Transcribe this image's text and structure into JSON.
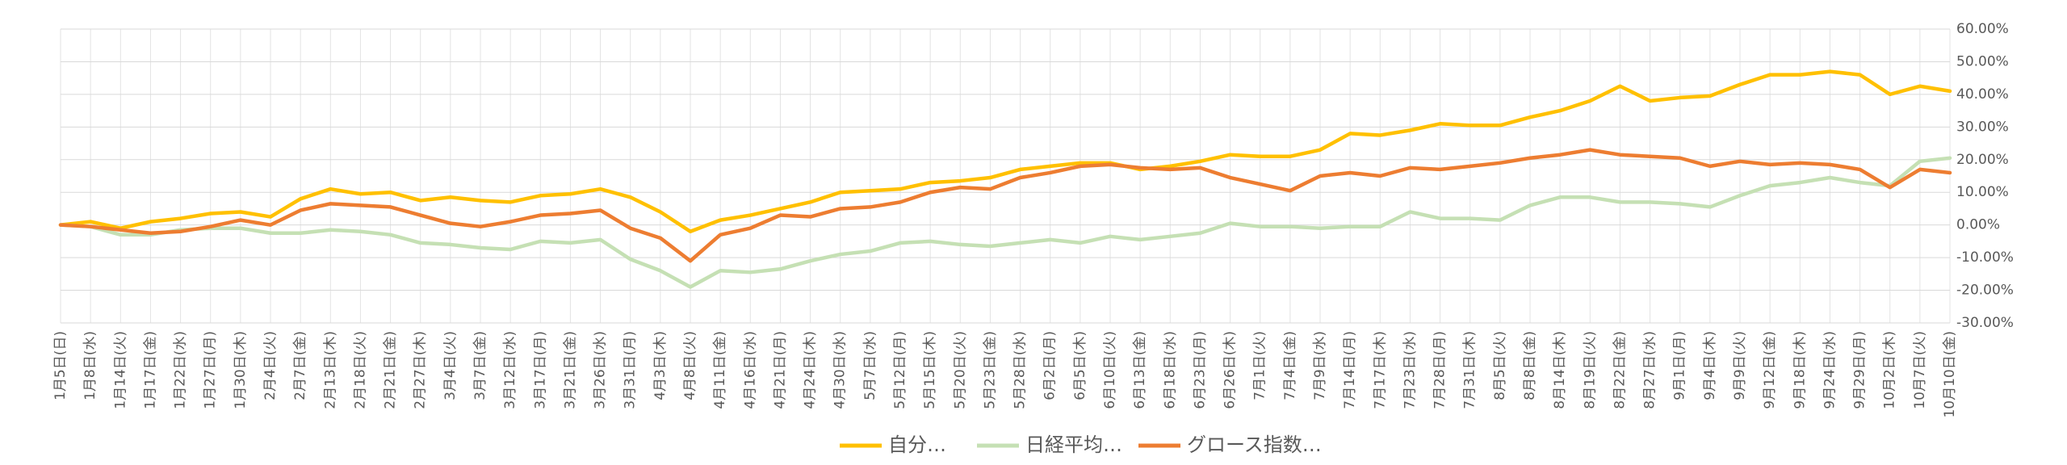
{
  "chart_data": {
    "type": "line",
    "categories": [
      "1月5日(日)",
      "1月8日(水)",
      "1月14日(火)",
      "1月17日(金)",
      "1月22日(水)",
      "1月27日(月)",
      "1月30日(木)",
      "2月4日(火)",
      "2月7日(金)",
      "2月13日(木)",
      "2月18日(火)",
      "2月21日(金)",
      "2月27日(木)",
      "3月4日(火)",
      "3月7日(金)",
      "3月12日(水)",
      "3月17日(月)",
      "3月21日(金)",
      "3月26日(水)",
      "3月31日(月)",
      "4月3日(木)",
      "4月8日(火)",
      "4月11日(金)",
      "4月16日(水)",
      "4月21日(月)",
      "4月24日(木)",
      "4月30日(水)",
      "5月7日(水)",
      "5月12日(月)",
      "5月15日(木)",
      "5月20日(火)",
      "5月23日(金)",
      "5月28日(水)",
      "6月2日(月)",
      "6月5日(木)",
      "6月10日(火)",
      "6月13日(金)",
      "6月18日(水)",
      "6月23日(月)",
      "6月26日(木)",
      "7月1日(火)",
      "7月4日(金)",
      "7月9日(水)",
      "7月14日(月)",
      "7月17日(木)",
      "7月23日(水)",
      "7月28日(月)",
      "7月31日(木)",
      "8月5日(火)",
      "8月8日(金)",
      "8月14日(木)",
      "8月19日(火)",
      "8月22日(金)",
      "8月27日(水)",
      "9月1日(月)",
      "9月4日(木)",
      "9月9日(火)",
      "9月12日(金)",
      "9月18日(木)",
      "9月24日(水)",
      "9月29日(月)",
      "10月2日(木)",
      "10月7日(火)",
      "10月10日(金)"
    ],
    "series": [
      {
        "name": "自分…",
        "color": "#ffc000",
        "values": [
          0,
          1,
          -1,
          1,
          2,
          3.5,
          4,
          2.5,
          8,
          11,
          9.5,
          10,
          7.5,
          8.5,
          7.5,
          7,
          9,
          9.5,
          11,
          8.5,
          4,
          -2,
          1.5,
          3,
          5,
          7,
          10,
          10.5,
          11,
          13,
          13.5,
          14.5,
          17,
          18,
          19,
          19,
          17,
          18,
          19.5,
          21.5,
          21,
          21,
          23,
          28,
          27.5,
          29,
          31,
          30.5,
          30.5,
          33,
          35,
          38,
          42.5,
          38,
          39,
          39.5,
          43,
          46,
          46,
          47,
          46,
          40,
          42.5,
          41
        ]
      },
      {
        "name": "日経平均…",
        "color": "#c5e0b4",
        "values": [
          0,
          -0.5,
          -3,
          -3,
          -1.5,
          -1,
          -1,
          -2.5,
          -2.5,
          -1.5,
          -2,
          -3,
          -5.5,
          -6,
          -7,
          -7.5,
          -5,
          -5.5,
          -4.5,
          -10.5,
          -14,
          -19,
          -14,
          -14.5,
          -13.5,
          -11,
          -9,
          -8,
          -5.5,
          -5,
          -6,
          -6.5,
          -5.5,
          -4.5,
          -5.5,
          -3.5,
          -4.5,
          -3.5,
          -2.5,
          0.5,
          -0.5,
          -0.5,
          -1,
          -0.5,
          -0.5,
          4,
          2,
          2,
          1.5,
          6,
          8.5,
          8.5,
          7,
          7,
          6.5,
          5.5,
          9,
          12,
          13,
          14.5,
          13,
          12,
          19.5,
          20.5
        ]
      },
      {
        "name": "グロース指数…",
        "color": "#ed7d31",
        "values": [
          0,
          -0.5,
          -1.5,
          -2.5,
          -2,
          -0.5,
          1.5,
          0,
          4.5,
          6.5,
          6,
          5.5,
          3,
          0.5,
          -0.5,
          1,
          3,
          3.5,
          4.5,
          -1,
          -4,
          -11,
          -3,
          -1,
          3,
          2.5,
          5,
          5.5,
          7,
          10,
          11.5,
          11,
          14.5,
          16,
          18,
          18.5,
          17.5,
          17,
          17.5,
          14.5,
          12.5,
          10.5,
          15,
          16,
          15,
          17.5,
          17,
          18,
          19,
          20.5,
          21.5,
          23,
          21.5,
          21,
          20.5,
          18,
          19.5,
          18.5,
          19,
          18.5,
          17,
          11.5,
          17,
          16
        ]
      }
    ],
    "ylim": [
      -30,
      60
    ],
    "yticks": [
      {
        "value": -30,
        "label": "-30.00%"
      },
      {
        "value": -20,
        "label": "-20.00%"
      },
      {
        "value": -10,
        "label": "-10.00%"
      },
      {
        "value": 0,
        "label": "0.00%"
      },
      {
        "value": 10,
        "label": "10.00%"
      },
      {
        "value": 20,
        "label": "20.00%"
      },
      {
        "value": 30,
        "label": "30.00%"
      },
      {
        "value": 40,
        "label": "40.00%"
      },
      {
        "value": 50,
        "label": "50.00%"
      },
      {
        "value": 60,
        "label": "60.00%"
      }
    ],
    "grid": true,
    "legend": "bottom"
  }
}
